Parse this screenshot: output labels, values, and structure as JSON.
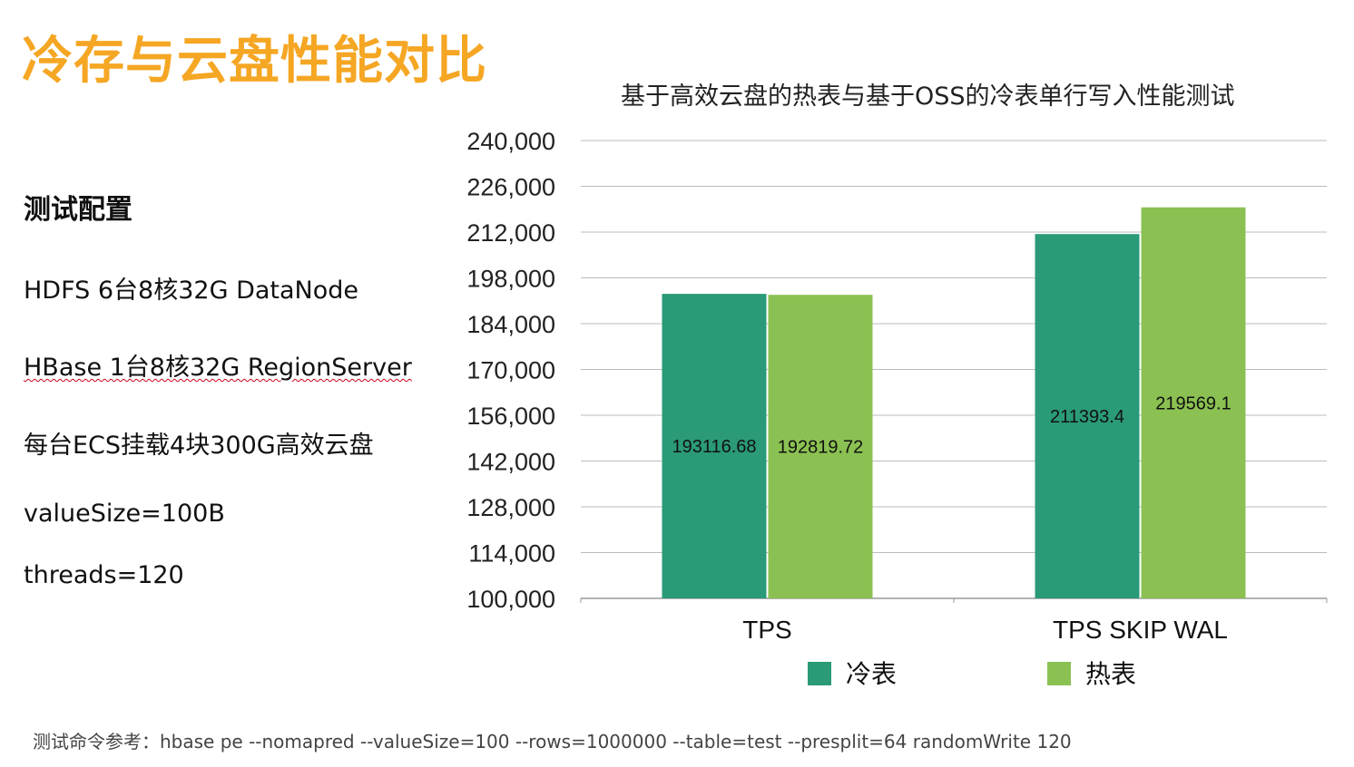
{
  "slide": {
    "title": "冷存与云盘性能对比"
  },
  "config": {
    "heading": "测试配置",
    "lines": [
      "HDFS  6台8核32G DataNode",
      "HBase 1台8核32G RegionServer",
      "每台ECS挂载4块300G高效云盘",
      "valueSize=100B",
      "threads=120"
    ]
  },
  "footer": {
    "command": "测试命令参考：hbase pe --nomapred --valueSize=100 --rows=1000000 --table=test  --presplit=64 randomWrite 120"
  },
  "colors": {
    "title": "#f5a623",
    "cold": "#2a9a78",
    "hot": "#8bc152",
    "grid": "#bbbbbb"
  },
  "chart_data": {
    "type": "bar",
    "title": "基于高效云盘的热表与基于OSS的冷表单行写入性能测试",
    "categories": [
      "TPS",
      "TPS SKIP WAL"
    ],
    "series": [
      {
        "name": "冷表",
        "values": [
          193116.68,
          211393.4
        ],
        "labels": [
          "193116.68",
          "211393.4"
        ],
        "color": "#2a9a78"
      },
      {
        "name": "热表",
        "values": [
          192819.72,
          219569.1
        ],
        "labels": [
          "192819.72",
          "219569.1"
        ],
        "color": "#8bc152"
      }
    ],
    "ylim": [
      100000,
      240000
    ],
    "yticks": [
      100000,
      114000,
      128000,
      142000,
      156000,
      170000,
      184000,
      198000,
      212000,
      226000,
      240000
    ],
    "ytick_labels": [
      "100,000",
      "114,000",
      "128,000",
      "142,000",
      "156,000",
      "170,000",
      "184,000",
      "198,000",
      "212,000",
      "226,000",
      "240,000"
    ],
    "grid": true,
    "legend": "bottom"
  }
}
